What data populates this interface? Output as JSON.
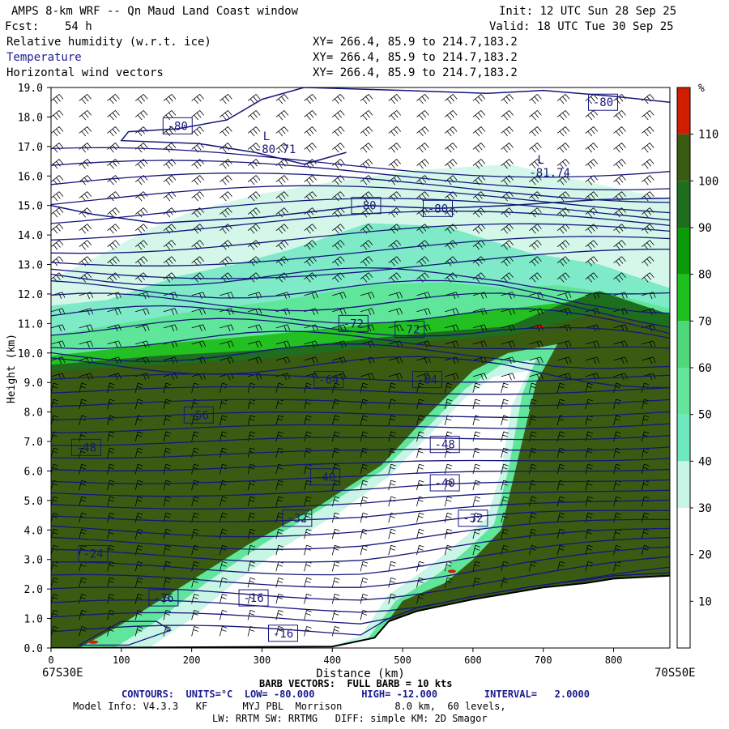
{
  "header": {
    "title": "AMPS 8-km WRF -- Qn Maud Land Coast window",
    "init": "Init: 12 UTC Sun 28 Sep 25",
    "fcst_label": "Fcst:",
    "fcst_value": "54 h",
    "valid": "Valid: 18 UTC Tue 30 Sep 25",
    "fields": [
      {
        "name": "Relative humidity (w.r.t. ice)",
        "xy": "XY= 266.4, 85.9 to 214.7,183.2",
        "color": "#000000"
      },
      {
        "name": "Temperature",
        "xy": "XY= 266.4, 85.9 to 214.7,183.2",
        "color": "#1b1b8f"
      },
      {
        "name": "Horizontal wind vectors",
        "xy": "XY= 266.4, 85.9 to 214.7,183.2",
        "color": "#000000"
      }
    ]
  },
  "chart_data": {
    "type": "heatmap",
    "xlabel": "Distance (km)",
    "ylabel": "Height (km)",
    "xlim": [
      0,
      880
    ],
    "ylim": [
      0,
      19
    ],
    "x_ticks": [
      0,
      100,
      200,
      300,
      400,
      500,
      600,
      700,
      800
    ],
    "y_ticks": [
      "0.0",
      "1.0",
      "2.0",
      "3.0",
      "4.0",
      "5.0",
      "6.0",
      "7.0",
      "8.0",
      "9.0",
      "10.0",
      "11.0",
      "12.0",
      "13.0",
      "14.0",
      "15.0",
      "16.0",
      "17.0",
      "18.0",
      "19.0"
    ],
    "x_left_label": "67S30E",
    "x_right_label": "70S50E",
    "colorbar": {
      "unit": "%",
      "levels": [
        10,
        20,
        30,
        40,
        50,
        60,
        70,
        80,
        90,
        100,
        110
      ],
      "colors": [
        "#ffffff",
        "#ffffff",
        "#ffffff",
        "#c8f5e6",
        "#6ee8c0",
        "#64e69a",
        "#4fd87a",
        "#1dc01d",
        "#0a9a0a",
        "#1e6e1e",
        "#3a5c12",
        "#d21e00"
      ]
    },
    "contour_labels": [
      {
        "text": "-80",
        "x": 180,
        "y": 17.7
      },
      {
        "text": "-80",
        "x": 785,
        "y": 18.5
      },
      {
        "text": "-80",
        "x": 448,
        "y": 15.0
      },
      {
        "text": "-80",
        "x": 550,
        "y": 14.9
      },
      {
        "text": "-72",
        "x": 430,
        "y": 11.0
      },
      {
        "text": "-72",
        "x": 510,
        "y": 10.8
      },
      {
        "text": "-64",
        "x": 395,
        "y": 9.1
      },
      {
        "text": "-64",
        "x": 535,
        "y": 9.1
      },
      {
        "text": "-56",
        "x": 210,
        "y": 7.9
      },
      {
        "text": "-48",
        "x": 50,
        "y": 6.8
      },
      {
        "text": "-48",
        "x": 560,
        "y": 6.9
      },
      {
        "text": "-40",
        "x": 390,
        "y": 5.8
      },
      {
        "text": "-40",
        "x": 560,
        "y": 5.6
      },
      {
        "text": "-32",
        "x": 350,
        "y": 4.4
      },
      {
        "text": "-32",
        "x": 600,
        "y": 4.4
      },
      {
        "text": "-24",
        "x": 60,
        "y": 3.2
      },
      {
        "text": "-16",
        "x": 160,
        "y": 1.7
      },
      {
        "text": "-16",
        "x": 288,
        "y": 1.7
      },
      {
        "text": "-16",
        "x": 330,
        "y": 0.5
      }
    ],
    "extrema": [
      {
        "mark": "L",
        "value": "-80.71",
        "x": 290,
        "y": 17.0
      },
      {
        "mark": "L",
        "value": "-81.74",
        "x": 680,
        "y": 16.2
      }
    ]
  },
  "footer": {
    "barb": "BARB VECTORS:  FULL BARB = 10 kts",
    "contours": "CONTOURS:  UNITS=°C  LOW= -80.000        HIGH= -12.000        INTERVAL=   2.0000",
    "model": "Model Info: V4.3.3   KF      MYJ PBL  Morrison         8.0 km,  60 levels,",
    "physics": "LW: RRTM SW: RRTMG   DIFF: simple KM: 2D Smagor"
  }
}
